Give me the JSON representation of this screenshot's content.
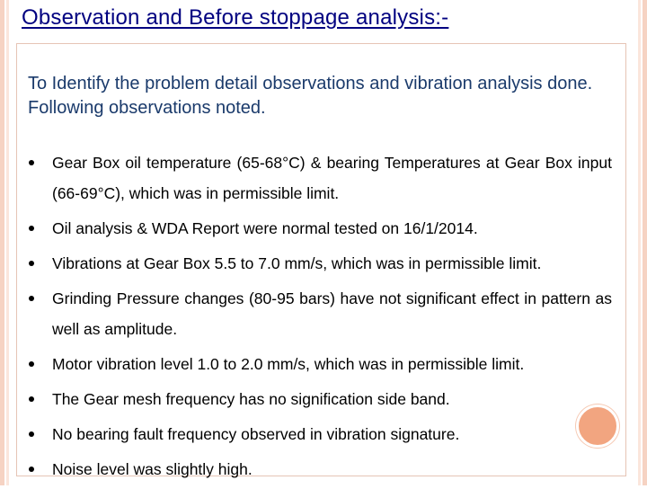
{
  "slide": {
    "title": "Observation and Before stoppage analysis:-",
    "intro": "To Identify the problem detail observations and vibration analysis done. Following observations noted.",
    "bullets": [
      "Gear Box oil temperature (65-68°C) & bearing Temperatures at Gear Box input (66-69°C), which was in permissible limit.",
      "Oil analysis & WDA Report were normal tested on 16/1/2014.",
      "Vibrations at Gear Box 5.5 to 7.0 mm/s, which was in permissible limit.",
      "Grinding Pressure changes (80-95 bars) have not significant effect in pattern as well as amplitude.",
      "Motor vibration level 1.0 to 2.0 mm/s, which was in permissible limit.",
      "The Gear mesh frequency has no signification side band.",
      "No bearing fault frequency observed in vibration signature.",
      "Noise level was slightly high."
    ]
  },
  "colors": {
    "title": "#000080",
    "intro": "#1a3a6b",
    "accent_circle": "#f2a580",
    "border_stripe": "#f6d3c3"
  }
}
